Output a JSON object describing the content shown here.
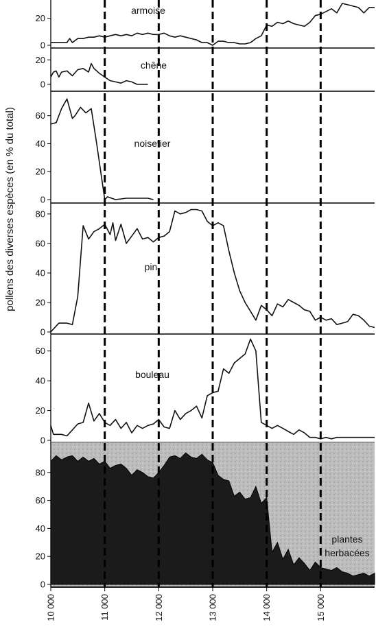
{
  "figure": {
    "ylabel": "pollens des diverses espèces (en % du total)",
    "x_ticks": [
      "10 000",
      "11 000",
      "12 000",
      "13 000",
      "14 000",
      "15 000"
    ]
  },
  "chart_data": [
    {
      "type": "line",
      "series": [
        {
          "name": "armoise",
          "x": [
            10000,
            10200,
            10300,
            10350,
            10400,
            10500,
            10600,
            10700,
            10800,
            10900,
            11000,
            11100,
            11200,
            11300,
            11400,
            11500,
            11600,
            11700,
            11800,
            11900,
            12000,
            12100,
            12200,
            12300,
            12400,
            12500,
            12600,
            12700,
            12800,
            12900,
            13000,
            13100,
            13200,
            13300,
            13400,
            13500,
            13600,
            13700,
            13800,
            13900,
            14000,
            14100,
            14200,
            14300,
            14400,
            14500,
            14600,
            14700,
            14800,
            14900,
            15000,
            15100,
            15200,
            15300,
            15400,
            15500,
            15600,
            15700,
            15800,
            15900,
            16000
          ],
          "values": [
            2,
            2,
            2,
            5,
            2,
            5,
            5,
            6,
            6,
            7,
            6,
            7,
            8,
            7,
            8,
            7,
            9,
            8,
            9,
            8,
            8,
            9,
            7,
            6,
            7,
            6,
            5,
            4,
            2,
            2,
            0,
            3,
            3,
            2,
            2,
            1,
            1,
            2,
            5,
            7,
            15,
            14,
            17,
            16,
            18,
            16,
            15,
            14,
            17,
            22,
            23,
            25,
            27,
            24,
            31,
            30,
            29,
            28,
            24,
            28,
            28
          ]
        }
      ],
      "ylim": [
        0,
        32
      ],
      "yticks": [
        0,
        20
      ]
    },
    {
      "type": "line",
      "series": [
        {
          "name": "chêne",
          "x": [
            10000,
            10050,
            10100,
            10150,
            10200,
            10300,
            10400,
            10500,
            10600,
            10700,
            10750,
            10800,
            10900,
            11000,
            11100,
            11200,
            11300,
            11400,
            11500,
            11600,
            11700,
            11800
          ],
          "values": [
            6,
            10,
            11,
            6,
            10,
            11,
            7,
            12,
            13,
            10,
            17,
            13,
            9,
            6,
            3,
            2,
            1,
            3,
            2,
            0,
            0,
            0
          ]
        }
      ],
      "ylim": [
        0,
        28
      ],
      "yticks": [
        0,
        20
      ]
    },
    {
      "type": "line",
      "series": [
        {
          "name": "noisetier",
          "x": [
            10000,
            10100,
            10200,
            10300,
            10400,
            10450,
            10550,
            10650,
            10750,
            10850,
            11000,
            11050,
            11200,
            11400,
            11600,
            11800,
            11900
          ],
          "values": [
            54,
            55,
            65,
            72,
            58,
            60,
            66,
            62,
            65,
            40,
            0,
            2,
            0,
            1,
            1,
            1,
            0
          ]
        }
      ],
      "ylim": [
        0,
        76
      ],
      "yticks": [
        0,
        20,
        40,
        60
      ]
    },
    {
      "type": "line",
      "series": [
        {
          "name": "pin",
          "x": [
            10000,
            10050,
            10150,
            10300,
            10400,
            10500,
            10600,
            10700,
            10800,
            10900,
            11000,
            11100,
            11150,
            11200,
            11300,
            11400,
            11500,
            11600,
            11700,
            11800,
            11900,
            12000,
            12100,
            12200,
            12300,
            12400,
            12500,
            12600,
            12700,
            12800,
            12900,
            13000,
            13100,
            13200,
            13300,
            13400,
            13500,
            13600,
            13700,
            13800,
            13900,
            14000,
            14100,
            14200,
            14300,
            14400,
            14500,
            14600,
            14700,
            14800,
            14900,
            15000,
            15100,
            15200,
            15300,
            15400,
            15500,
            15600,
            15700,
            15800,
            15900,
            16000
          ],
          "values": [
            0,
            2,
            6,
            6,
            5,
            24,
            72,
            63,
            68,
            70,
            73,
            66,
            74,
            62,
            73,
            60,
            65,
            70,
            63,
            64,
            61,
            64,
            65,
            68,
            82,
            80,
            81,
            83,
            83,
            82,
            75,
            72,
            74,
            72,
            55,
            40,
            28,
            20,
            14,
            8,
            18,
            15,
            11,
            19,
            17,
            22,
            20,
            18,
            15,
            14,
            8,
            10,
            8,
            9,
            5,
            6,
            7,
            12,
            11,
            8,
            4,
            3
          ]
        }
      ],
      "ylim": [
        0,
        86
      ],
      "yticks": [
        0,
        20,
        40,
        60,
        80
      ]
    },
    {
      "type": "line",
      "series": [
        {
          "name": "bouleau",
          "x": [
            10000,
            10050,
            10200,
            10300,
            10400,
            10500,
            10600,
            10700,
            10800,
            10900,
            11000,
            11100,
            11200,
            11300,
            11400,
            11500,
            11600,
            11700,
            11800,
            11900,
            12000,
            12100,
            12200,
            12300,
            12400,
            12500,
            12600,
            12700,
            12800,
            12900,
            13000,
            13100,
            13200,
            13300,
            13400,
            13500,
            13600,
            13700,
            13800,
            13900,
            14000,
            14100,
            14200,
            14300,
            14400,
            14500,
            14600,
            14700,
            14800,
            14900,
            15000,
            15100,
            15200,
            15300,
            15400,
            15500,
            15600,
            15700,
            15800,
            15900,
            16000
          ],
          "values": [
            10,
            4,
            4,
            3,
            7,
            11,
            12,
            25,
            13,
            18,
            12,
            10,
            14,
            8,
            12,
            5,
            10,
            8,
            10,
            11,
            14,
            9,
            8,
            20,
            14,
            18,
            20,
            23,
            15,
            30,
            32,
            33,
            48,
            45,
            52,
            55,
            58,
            68,
            60,
            12,
            10,
            8,
            10,
            8,
            6,
            4,
            7,
            5,
            2,
            2,
            1,
            2,
            1,
            2,
            2,
            2,
            2,
            2,
            2,
            2,
            2
          ]
        }
      ],
      "ylim": [
        0,
        70
      ],
      "yticks": [
        0,
        20,
        40,
        60
      ]
    },
    {
      "type": "area",
      "series": [
        {
          "name": "plantes herbacées",
          "x": [
            10000,
            10100,
            10200,
            10300,
            10400,
            10500,
            10600,
            10700,
            10800,
            10900,
            11000,
            11100,
            11200,
            11300,
            11400,
            11500,
            11600,
            11700,
            11800,
            11900,
            12000,
            12100,
            12200,
            12300,
            12400,
            12500,
            12600,
            12700,
            12800,
            12900,
            13000,
            13100,
            13200,
            13300,
            13400,
            13500,
            13600,
            13700,
            13800,
            13900,
            14000,
            14100,
            14200,
            14300,
            14400,
            14500,
            14600,
            14700,
            14800,
            14900,
            15000,
            15100,
            15200,
            15300,
            15400,
            15500,
            15600,
            15700,
            15800,
            15900,
            16000
          ],
          "values": [
            88,
            92,
            89,
            91,
            92,
            88,
            91,
            88,
            90,
            86,
            88,
            83,
            85,
            86,
            83,
            78,
            82,
            80,
            77,
            76,
            80,
            85,
            91,
            92,
            90,
            94,
            91,
            90,
            93,
            89,
            87,
            78,
            75,
            74,
            63,
            66,
            61,
            62,
            70,
            58,
            62,
            23,
            30,
            18,
            25,
            14,
            19,
            15,
            10,
            16,
            12,
            11,
            10,
            12,
            9,
            8,
            6,
            7,
            8,
            6,
            8
          ]
        }
      ],
      "ylim": [
        0,
        100
      ],
      "yticks": [
        0,
        20,
        40,
        60,
        80
      ]
    }
  ]
}
